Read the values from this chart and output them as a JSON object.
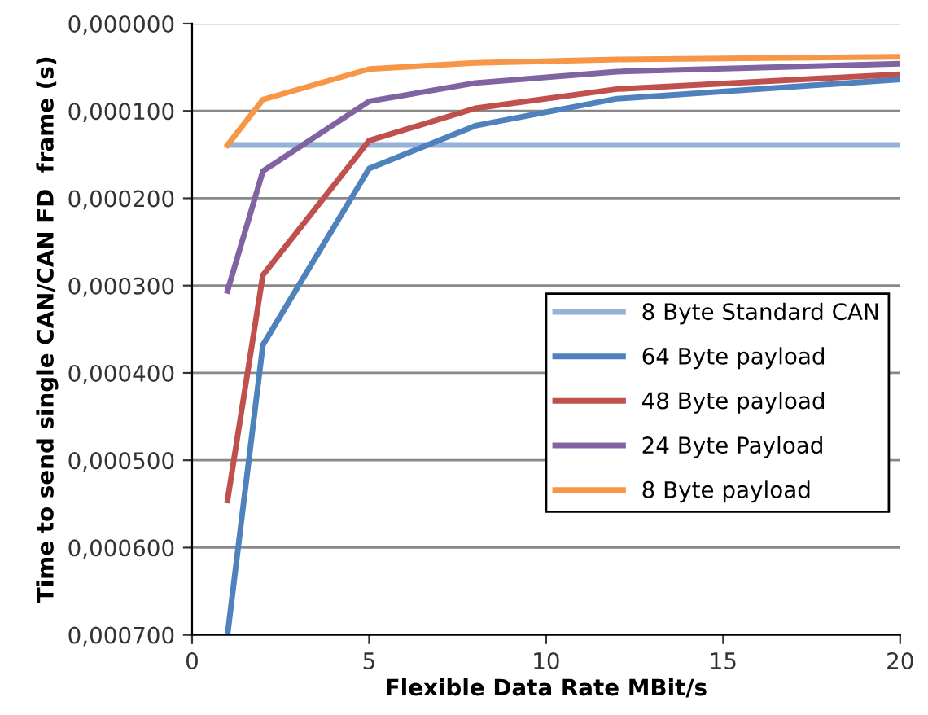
{
  "chart_data": {
    "type": "line",
    "xlabel": "Flexible Data Rate MBit/s",
    "ylabel": "Time to send single CAN/CAN FD  frame (s)",
    "xlim": [
      0,
      20
    ],
    "xticks": [
      0,
      5,
      10,
      15,
      20
    ],
    "ylim": [
      0.0007,
      0
    ],
    "yticks": [
      {
        "value": 0,
        "label": "0,000000"
      },
      {
        "value": 0.0001,
        "label": "0,000100"
      },
      {
        "value": 0.0002,
        "label": "0,000200"
      },
      {
        "value": 0.0003,
        "label": "0,000300"
      },
      {
        "value": 0.0004,
        "label": "0,000400"
      },
      {
        "value": 0.0005,
        "label": "0,000500"
      },
      {
        "value": 0.0006,
        "label": "0,000600"
      },
      {
        "value": 0.0007,
        "label": "0,000700"
      }
    ],
    "grid": "y",
    "legend": "right",
    "marker": "none",
    "series": [
      {
        "name": "8 Byte Standard CAN",
        "color": "#95b3d7",
        "x": [
          1,
          20
        ],
        "values": [
          0.000139,
          0.000139
        ]
      },
      {
        "name": "64 Byte payload",
        "color": "#4f81bd",
        "x": [
          1,
          2,
          5,
          8,
          12,
          20
        ],
        "values": [
          0.0007,
          0.000368,
          0.000166,
          0.000117,
          8.6e-05,
          6.4e-05
        ]
      },
      {
        "name": "48 Byte payload",
        "color": "#c0504d",
        "x": [
          1,
          2,
          5,
          8,
          12,
          20
        ],
        "values": [
          0.000546,
          0.000288,
          0.000134,
          9.7e-05,
          7.5e-05,
          5.8e-05
        ]
      },
      {
        "name": "24 Byte Payload",
        "color": "#8064a2",
        "x": [
          1,
          2,
          5,
          8,
          12,
          20
        ],
        "values": [
          0.000306,
          0.000169,
          8.9e-05,
          6.8e-05,
          5.5e-05,
          4.6e-05
        ]
      },
      {
        "name": "8 Byte payload",
        "color": "#f79646",
        "x": [
          1,
          2,
          5,
          8,
          12,
          20
        ],
        "values": [
          0.000139,
          8.7e-05,
          5.2e-05,
          4.5e-05,
          4.1e-05,
          3.8e-05
        ]
      }
    ]
  }
}
